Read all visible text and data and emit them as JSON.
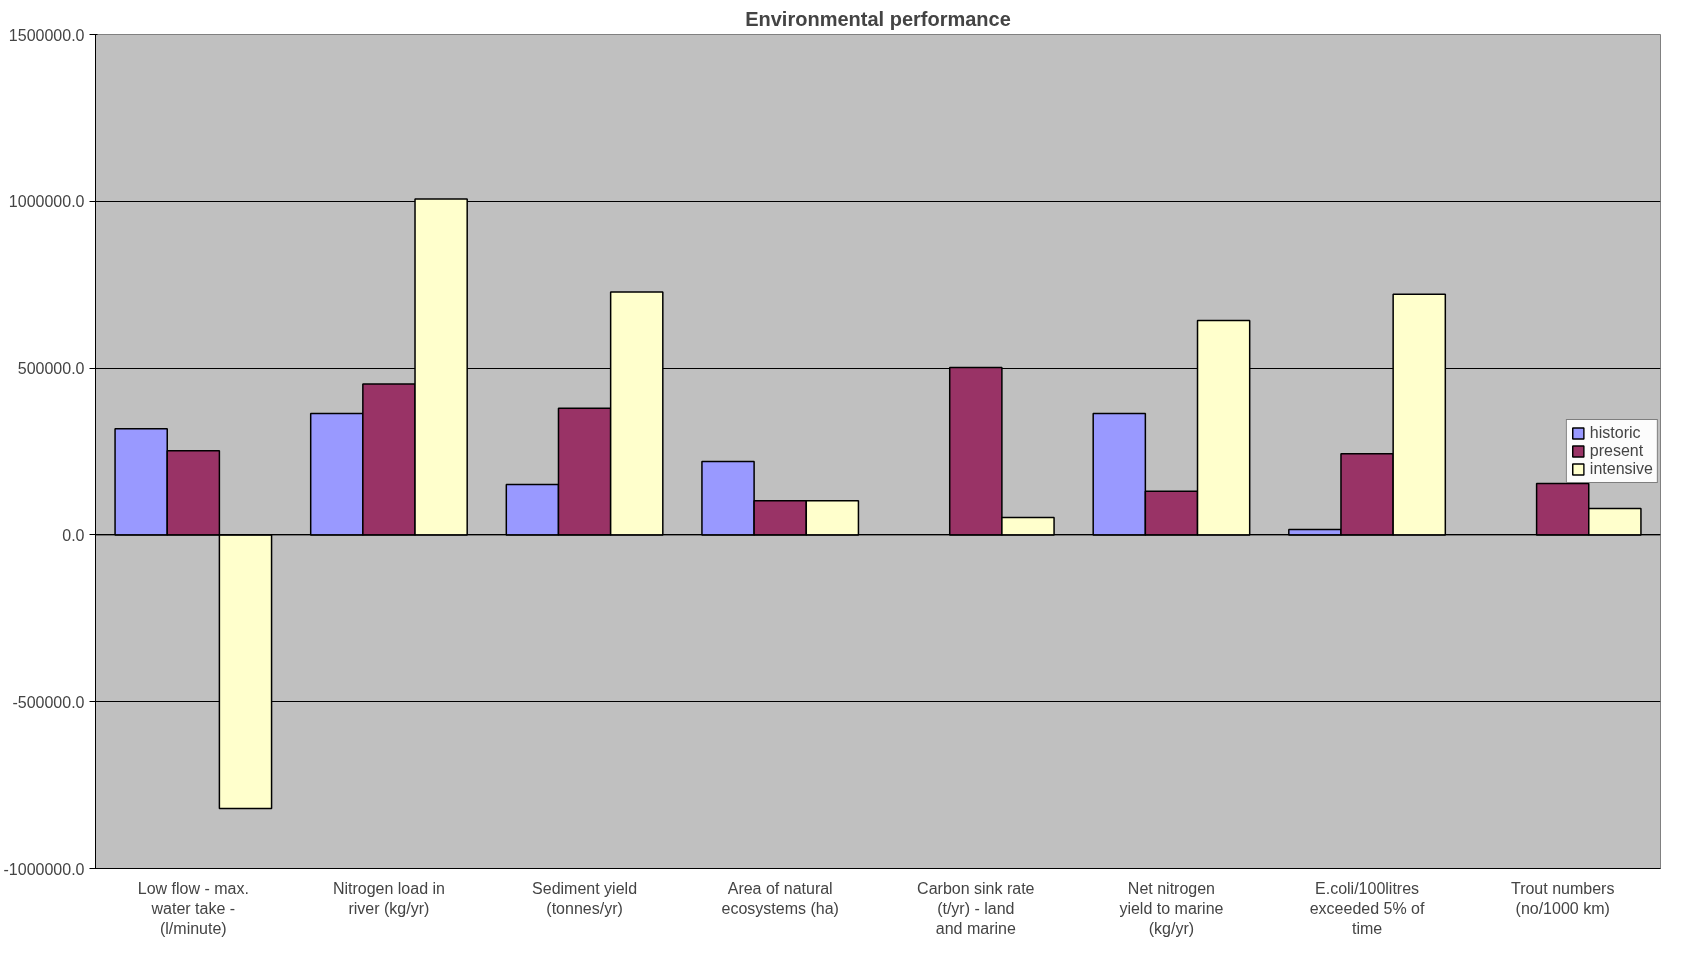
{
  "chart_data": {
    "type": "bar",
    "title": "Environmental performance",
    "categories": [
      "Low flow - max. water take - (l/minute)",
      "Nitrogen load in river (kg/yr)",
      "Sediment yield (tonnes/yr)",
      "Area of natural ecosystems (ha)",
      "Carbon sink rate (t/yr) - land and marine",
      "Net nitrogen yield to marine (kg/yr)",
      "E.coli/100litres exceeded 5% of time",
      "Trout numbers (no/1000 km)"
    ],
    "series": [
      {
        "name": "historic",
        "color": "#9999ff",
        "values": [
          318000,
          364000,
          151000,
          220000,
          null,
          364000,
          16000,
          null
        ]
      },
      {
        "name": "present",
        "color": "#993366",
        "values": [
          252000,
          452000,
          380000,
          102000,
          502000,
          131000,
          243000,
          154000
        ]
      },
      {
        "name": "intensive",
        "color": "#ffffcc",
        "values": [
          -820000,
          1007000,
          728000,
          102000,
          52000,
          643000,
          721000,
          79000
        ]
      }
    ],
    "ylim": [
      -1000000,
      1500000
    ],
    "yticks": [
      {
        "value": -1000000,
        "label": "-1000000.0"
      },
      {
        "value": -500000,
        "label": "-500000.0"
      },
      {
        "value": 0,
        "label": "0.0"
      },
      {
        "value": 500000,
        "label": "500000.0"
      },
      {
        "value": 1000000,
        "label": "1000000.0"
      },
      {
        "value": 1500000,
        "label": "1500000.0"
      }
    ],
    "grid": "y",
    "legend": "right"
  }
}
